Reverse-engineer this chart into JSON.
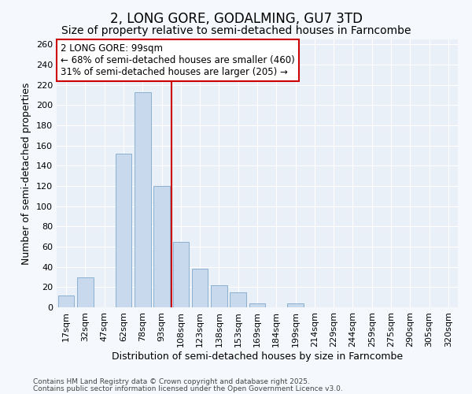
{
  "title": "2, LONG GORE, GODALMING, GU7 3TD",
  "subtitle": "Size of property relative to semi-detached houses in Farncombe",
  "xlabel": "Distribution of semi-detached houses by size in Farncombe",
  "ylabel": "Number of semi-detached properties",
  "categories": [
    "17sqm",
    "32sqm",
    "47sqm",
    "62sqm",
    "78sqm",
    "93sqm",
    "108sqm",
    "123sqm",
    "138sqm",
    "153sqm",
    "169sqm",
    "184sqm",
    "199sqm",
    "214sqm",
    "229sqm",
    "244sqm",
    "259sqm",
    "275sqm",
    "290sqm",
    "305sqm",
    "320sqm"
  ],
  "values": [
    12,
    30,
    0,
    152,
    213,
    120,
    65,
    38,
    22,
    15,
    4,
    0,
    4,
    0,
    0,
    0,
    0,
    0,
    0,
    0,
    0
  ],
  "bar_color": "#c8d8ed",
  "bar_edge_color": "#8ab0d0",
  "property_label": "2 LONG GORE: 99sqm",
  "vline_x": 5.5,
  "annotation_line1": "← 68% of semi-detached houses are smaller (460)",
  "annotation_line2": "31% of semi-detached houses are larger (205) →",
  "annotation_box_facecolor": "#ffffff",
  "annotation_box_edgecolor": "#cc0000",
  "vline_color": "#cc0000",
  "footer_line1": "Contains HM Land Registry data © Crown copyright and database right 2025.",
  "footer_line2": "Contains public sector information licensed under the Open Government Licence v3.0.",
  "bg_color": "#f5f8fc",
  "plot_bg_color": "#eaf0f8",
  "grid_color": "#ffffff",
  "ylim": [
    0,
    265
  ],
  "xlim_min": -0.5,
  "title_fontsize": 12,
  "subtitle_fontsize": 10,
  "xlabel_fontsize": 9,
  "ylabel_fontsize": 9,
  "tick_fontsize": 8,
  "annot_fontsize": 8.5,
  "footer_fontsize": 6.5
}
